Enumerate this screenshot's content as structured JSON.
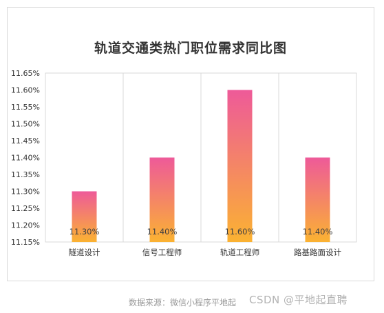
{
  "chart_data": {
    "type": "bar",
    "title": "轨道交通类热门职位需求同比图",
    "categories": [
      "隧道设计",
      "信号工程师",
      "轨道工程师",
      "路基路面设计"
    ],
    "values": [
      11.3,
      11.4,
      11.6,
      11.4
    ],
    "data_labels": [
      "11.30%",
      "11.40%",
      "11.60%",
      "11.40%"
    ],
    "yticks": [
      "11.65%",
      "11.60%",
      "11.55%",
      "11.50%",
      "11.45%",
      "11.40%",
      "11.35%",
      "11.30%",
      "11.25%",
      "11.20%",
      "11.15%"
    ],
    "ylim": [
      11.15,
      11.65
    ],
    "grid": true,
    "bar_gradient": {
      "top": "#ee5a99",
      "bottom": "#fbb232"
    }
  },
  "footer": {
    "source": "数据来源：微信小程序平地起",
    "watermark": "CSDN @平地起直聘"
  }
}
